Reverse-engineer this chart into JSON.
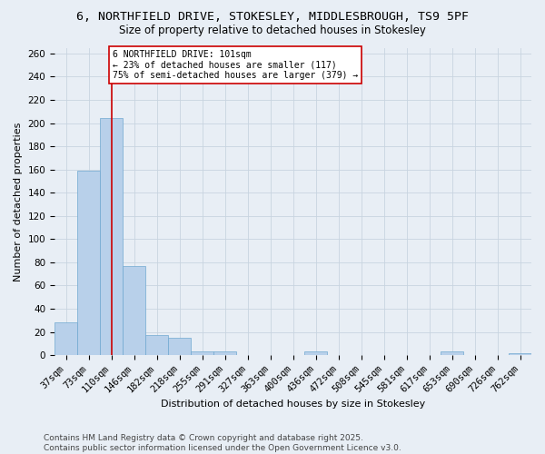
{
  "title_line1": "6, NORTHFIELD DRIVE, STOKESLEY, MIDDLESBROUGH, TS9 5PF",
  "title_line2": "Size of property relative to detached houses in Stokesley",
  "xlabel": "Distribution of detached houses by size in Stokesley",
  "ylabel": "Number of detached properties",
  "categories": [
    "37sqm",
    "73sqm",
    "110sqm",
    "146sqm",
    "182sqm",
    "218sqm",
    "255sqm",
    "291sqm",
    "327sqm",
    "363sqm",
    "400sqm",
    "436sqm",
    "472sqm",
    "508sqm",
    "545sqm",
    "581sqm",
    "617sqm",
    "653sqm",
    "690sqm",
    "726sqm",
    "762sqm"
  ],
  "values": [
    28,
    159,
    204,
    77,
    17,
    15,
    3,
    3,
    0,
    0,
    0,
    3,
    0,
    0,
    0,
    0,
    0,
    3,
    0,
    0,
    2
  ],
  "bar_color": "#b8d0ea",
  "bar_edge_color": "#6fa8d0",
  "vline_color": "#cc0000",
  "vline_x": 2.0,
  "annotation_text": "6 NORTHFIELD DRIVE: 101sqm\n← 23% of detached houses are smaller (117)\n75% of semi-detached houses are larger (379) →",
  "annotation_box_color": "#ffffff",
  "annotation_box_edge": "#cc0000",
  "ylim": [
    0,
    265
  ],
  "yticks": [
    0,
    20,
    40,
    60,
    80,
    100,
    120,
    140,
    160,
    180,
    200,
    220,
    240,
    260
  ],
  "grid_color": "#c8d4e0",
  "background_color": "#e8eef5",
  "footer_text": "Contains HM Land Registry data © Crown copyright and database right 2025.\nContains public sector information licensed under the Open Government Licence v3.0.",
  "title_fontsize": 9.5,
  "subtitle_fontsize": 8.5,
  "label_fontsize": 8,
  "tick_fontsize": 7.5,
  "footer_fontsize": 6.5,
  "annot_fontsize": 7
}
